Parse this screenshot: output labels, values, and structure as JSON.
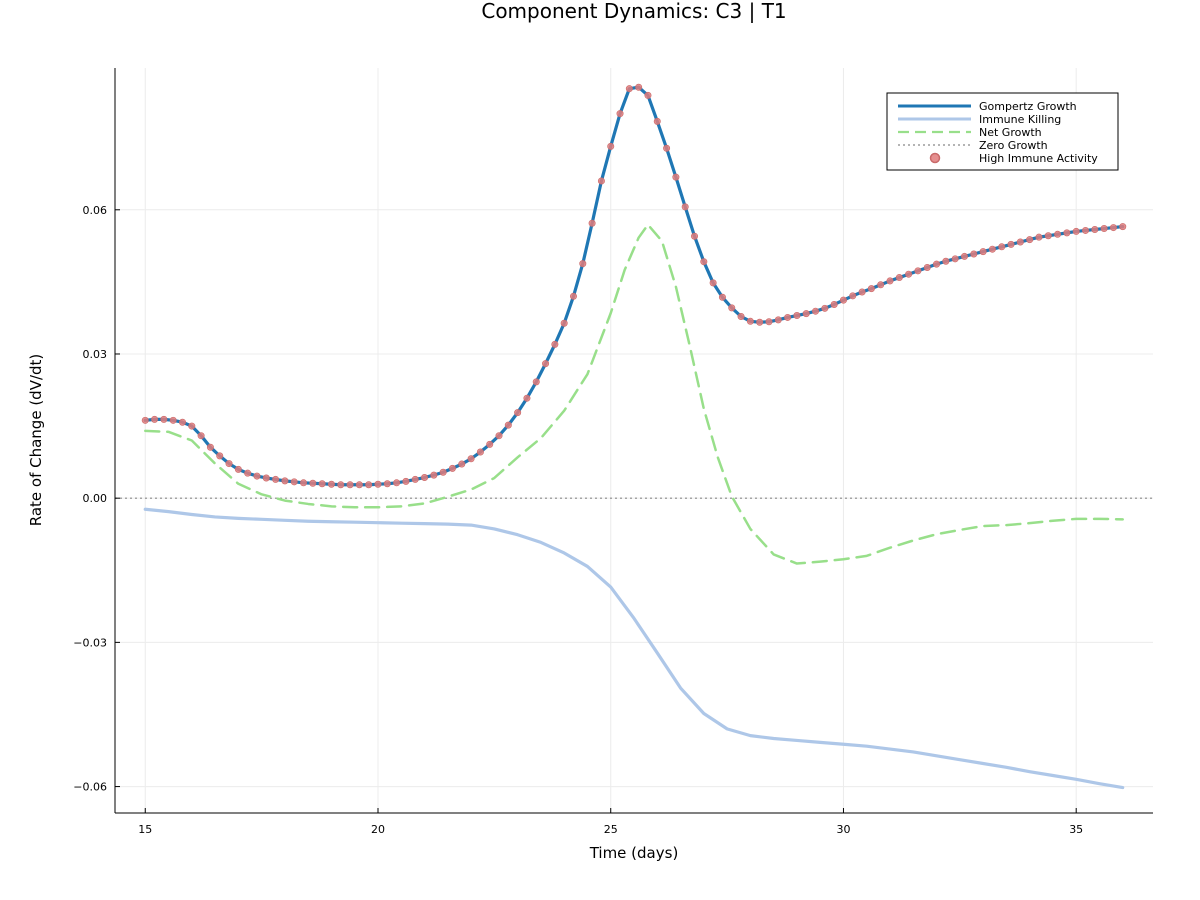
{
  "chart_data": {
    "type": "line",
    "title": "Component Dynamics: C3 | T1",
    "xlabel": "Time (days)",
    "ylabel": "Rate of Change (dV/dt)",
    "xlim": [
      14.35,
      36.65
    ],
    "ylim": [
      -0.0655,
      0.0895
    ],
    "xticks": [
      15,
      20,
      25,
      30,
      35
    ],
    "yticks": [
      -0.06,
      -0.03,
      0.0,
      0.03,
      0.06
    ],
    "xtick_labels": [
      "15",
      "20",
      "25",
      "30",
      "35"
    ],
    "ytick_labels": [
      "−0.06",
      "−0.03",
      "0.00",
      "0.03",
      "0.06"
    ],
    "grid": true,
    "legend_position": "top-right",
    "legend": [
      "Gompertz Growth",
      "Immune Killing",
      "Net Growth",
      "Zero Growth",
      "High Immune Activity"
    ],
    "series": [
      {
        "name": "Gompertz Growth",
        "color": "#1f77b4",
        "style": "solid",
        "x": [
          15,
          15.2,
          15.4,
          15.6,
          15.8,
          16.0,
          16.2,
          16.4,
          16.6,
          16.8,
          17.0,
          17.2,
          17.4,
          17.6,
          17.8,
          18.0,
          18.2,
          18.4,
          18.6,
          18.8,
          19.0,
          19.2,
          19.4,
          19.6,
          19.8,
          20.0,
          20.2,
          20.4,
          20.6,
          20.8,
          21.0,
          21.2,
          21.4,
          21.6,
          21.8,
          22.0,
          22.2,
          22.4,
          22.6,
          22.8,
          23.0,
          23.2,
          23.4,
          23.6,
          23.8,
          24.0,
          24.2,
          24.4,
          24.6,
          24.8,
          25.0,
          25.2,
          25.4,
          25.6,
          25.8,
          26.0,
          26.2,
          26.4,
          26.6,
          26.8,
          27.0,
          27.2,
          27.4,
          27.6,
          27.8,
          28.0,
          28.2,
          28.4,
          28.6,
          28.8,
          29.0,
          29.2,
          29.4,
          29.6,
          29.8,
          30.0,
          30.2,
          30.4,
          30.6,
          30.8,
          31.0,
          31.2,
          31.4,
          31.6,
          31.8,
          32.0,
          32.2,
          32.4,
          32.6,
          32.8,
          33.0,
          33.2,
          33.4,
          33.6,
          33.8,
          34.0,
          34.2,
          34.4,
          34.6,
          34.8,
          35.0,
          35.2,
          35.4,
          35.6,
          35.8,
          36.0
        ],
        "y": [
          0.0162,
          0.0164,
          0.0164,
          0.0162,
          0.0158,
          0.015,
          0.013,
          0.0106,
          0.0088,
          0.0072,
          0.006,
          0.0052,
          0.0046,
          0.0042,
          0.0039,
          0.0036,
          0.0034,
          0.0032,
          0.0031,
          0.003,
          0.0029,
          0.0028,
          0.0028,
          0.0028,
          0.0028,
          0.0029,
          0.003,
          0.0032,
          0.0035,
          0.0039,
          0.0043,
          0.0048,
          0.0054,
          0.0062,
          0.0071,
          0.0082,
          0.0096,
          0.0112,
          0.013,
          0.0152,
          0.0178,
          0.0208,
          0.0242,
          0.028,
          0.032,
          0.0364,
          0.042,
          0.0488,
          0.0572,
          0.066,
          0.0732,
          0.08,
          0.0852,
          0.0855,
          0.0838,
          0.0784,
          0.0728,
          0.0668,
          0.0606,
          0.0545,
          0.0492,
          0.0448,
          0.0418,
          0.0396,
          0.0378,
          0.0368,
          0.0366,
          0.0367,
          0.0371,
          0.0376,
          0.038,
          0.0384,
          0.0389,
          0.0395,
          0.0403,
          0.0412,
          0.0421,
          0.0429,
          0.0436,
          0.0444,
          0.0452,
          0.0459,
          0.0466,
          0.0473,
          0.048,
          0.0487,
          0.0493,
          0.0498,
          0.0503,
          0.0508,
          0.0513,
          0.0518,
          0.0523,
          0.0528,
          0.0533,
          0.0538,
          0.0543,
          0.0546,
          0.0549,
          0.0552,
          0.0555,
          0.0557,
          0.0559,
          0.0561,
          0.0563,
          0.0565
        ]
      },
      {
        "name": "Immune Killing",
        "color": "#aec7e8",
        "style": "solid",
        "x": [
          15,
          15.5,
          16,
          16.5,
          17,
          17.5,
          18,
          18.5,
          19,
          19.5,
          20,
          20.5,
          21,
          21.5,
          22,
          22.5,
          23,
          23.5,
          24,
          24.5,
          25,
          25.5,
          26,
          26.5,
          27,
          27.5,
          28,
          28.5,
          29,
          29.5,
          30,
          30.5,
          31,
          31.5,
          32,
          32.5,
          33,
          33.5,
          34,
          34.5,
          35,
          35.5,
          36
        ],
        "y": [
          -0.0023,
          -0.0028,
          -0.0034,
          -0.0039,
          -0.0042,
          -0.0044,
          -0.0046,
          -0.0048,
          -0.0049,
          -0.005,
          -0.0051,
          -0.0052,
          -0.0053,
          -0.0054,
          -0.0056,
          -0.0064,
          -0.0076,
          -0.0092,
          -0.0114,
          -0.0142,
          -0.0185,
          -0.025,
          -0.0322,
          -0.0395,
          -0.0448,
          -0.048,
          -0.0494,
          -0.05,
          -0.0504,
          -0.0508,
          -0.0512,
          -0.0516,
          -0.0522,
          -0.0528,
          -0.0536,
          -0.0544,
          -0.0552,
          -0.056,
          -0.0569,
          -0.0577,
          -0.0585,
          -0.0594,
          -0.0602
        ]
      },
      {
        "name": "Net Growth",
        "color": "#98df8a",
        "style": "dashed",
        "x": [
          15,
          15.5,
          16,
          16.5,
          17,
          17.5,
          18,
          18.5,
          19,
          19.5,
          20,
          20.5,
          21,
          21.5,
          22,
          22.5,
          23,
          23.5,
          24,
          24.5,
          25,
          25.3,
          25.6,
          25.8,
          26.1,
          26.4,
          26.7,
          27.0,
          27.3,
          27.6,
          28,
          28.5,
          29,
          29.5,
          30,
          30.5,
          31,
          31.5,
          32,
          32.5,
          33,
          33.5,
          34,
          34.5,
          35,
          35.5,
          36
        ],
        "y": [
          0.014,
          0.0138,
          0.012,
          0.0072,
          0.003,
          0.0008,
          -0.0005,
          -0.0012,
          -0.0017,
          -0.0019,
          -0.0019,
          -0.0017,
          -0.0011,
          0.0003,
          0.0018,
          0.0042,
          0.0085,
          0.0125,
          0.0182,
          0.0258,
          0.0385,
          0.0475,
          0.0542,
          0.0569,
          0.0535,
          0.044,
          0.0316,
          0.0186,
          0.0085,
          0.0004,
          -0.0064,
          -0.0117,
          -0.0136,
          -0.0132,
          -0.0127,
          -0.012,
          -0.0103,
          -0.0088,
          -0.0075,
          -0.0066,
          -0.0058,
          -0.0056,
          -0.0052,
          -0.0047,
          -0.0043,
          -0.0043,
          -0.0044
        ]
      },
      {
        "name": "Zero Growth",
        "color": "#888888",
        "style": "dotted",
        "y": 0.0
      },
      {
        "name": "High Immune Activity",
        "color": "#e07b7b",
        "style": "markers",
        "marker_on": "Gompertz Growth"
      }
    ]
  }
}
